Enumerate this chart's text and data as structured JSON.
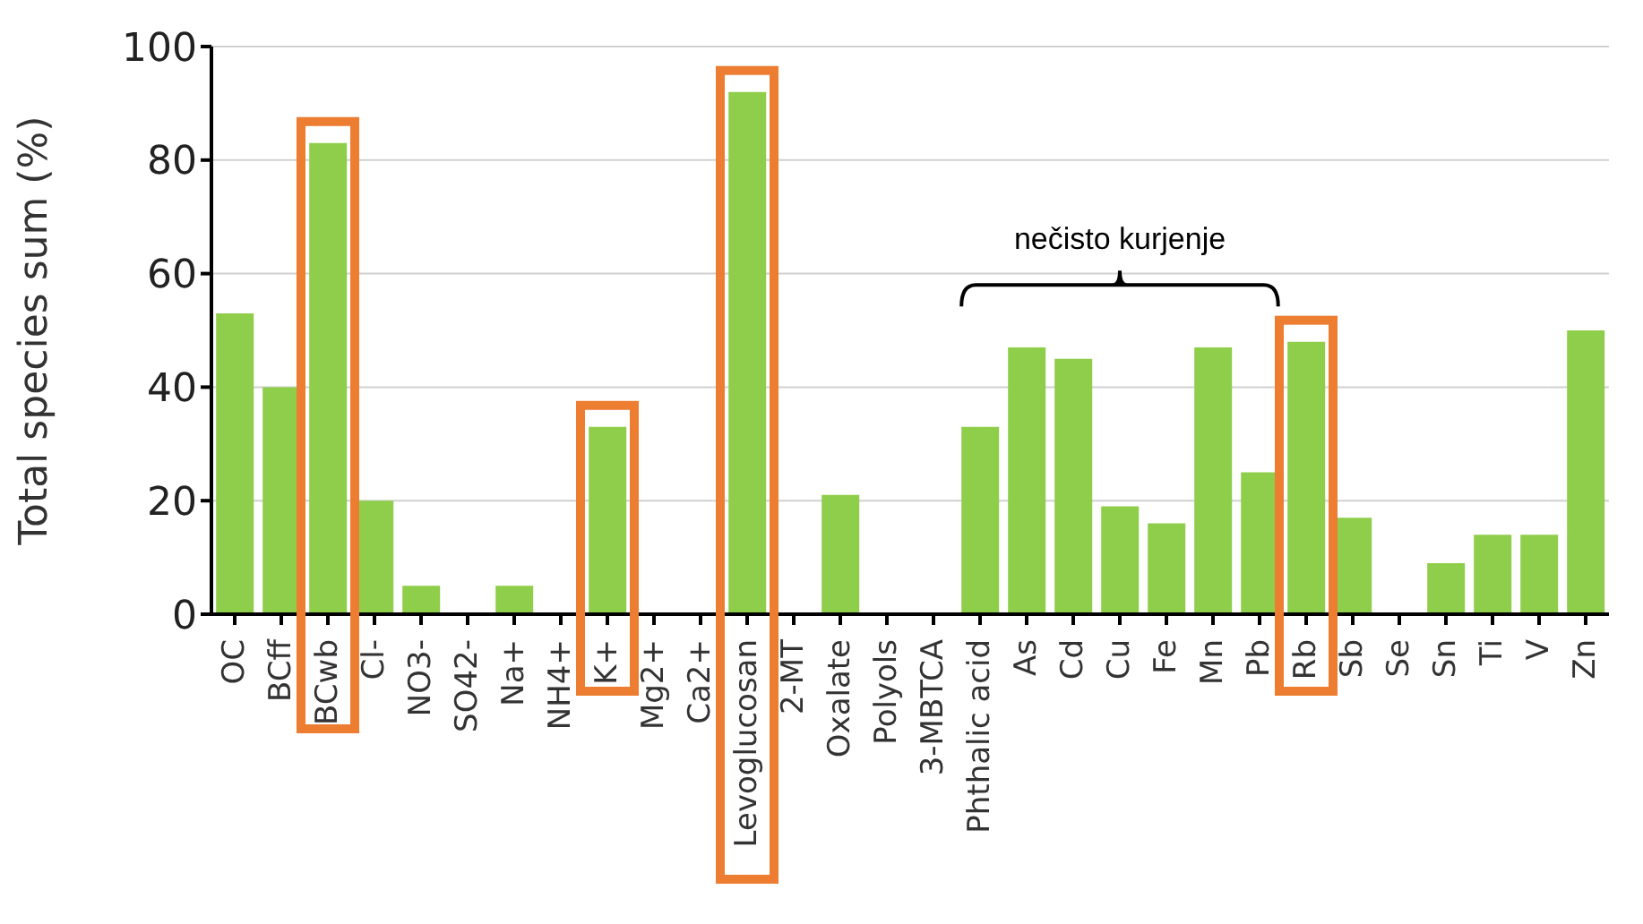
{
  "chart_data": {
    "type": "bar",
    "ylabel": "Total species sum (%)",
    "categories": [
      "OC",
      "BCff",
      "BCwb",
      "Cl-",
      "NO3-",
      "SO42-",
      "Na+",
      "NH4+",
      "K+",
      "Mg2+",
      "Ca2+",
      "Levoglucosan",
      "2-MT",
      "Oxalate",
      "Polyols",
      "3-MBTCA",
      "Phthalic acid",
      "As",
      "Cd",
      "Cu",
      "Fe",
      "Mn",
      "Pb",
      "Rb",
      "Sb",
      "Se",
      "Sn",
      "Ti",
      "V",
      "Zn"
    ],
    "values": [
      53,
      40,
      83,
      20,
      5,
      0,
      5,
      0,
      33,
      0,
      0,
      92,
      0,
      21,
      0,
      0,
      33,
      47,
      45,
      19,
      16,
      47,
      25,
      48,
      17,
      0,
      9,
      14,
      14,
      50
    ],
    "color": "#8fce4a",
    "ylim": [
      0,
      100
    ],
    "yticks": [
      0,
      20,
      40,
      60,
      80,
      100
    ],
    "grid": "y",
    "annotations": [
      "nečisto kurjenje"
    ]
  }
}
